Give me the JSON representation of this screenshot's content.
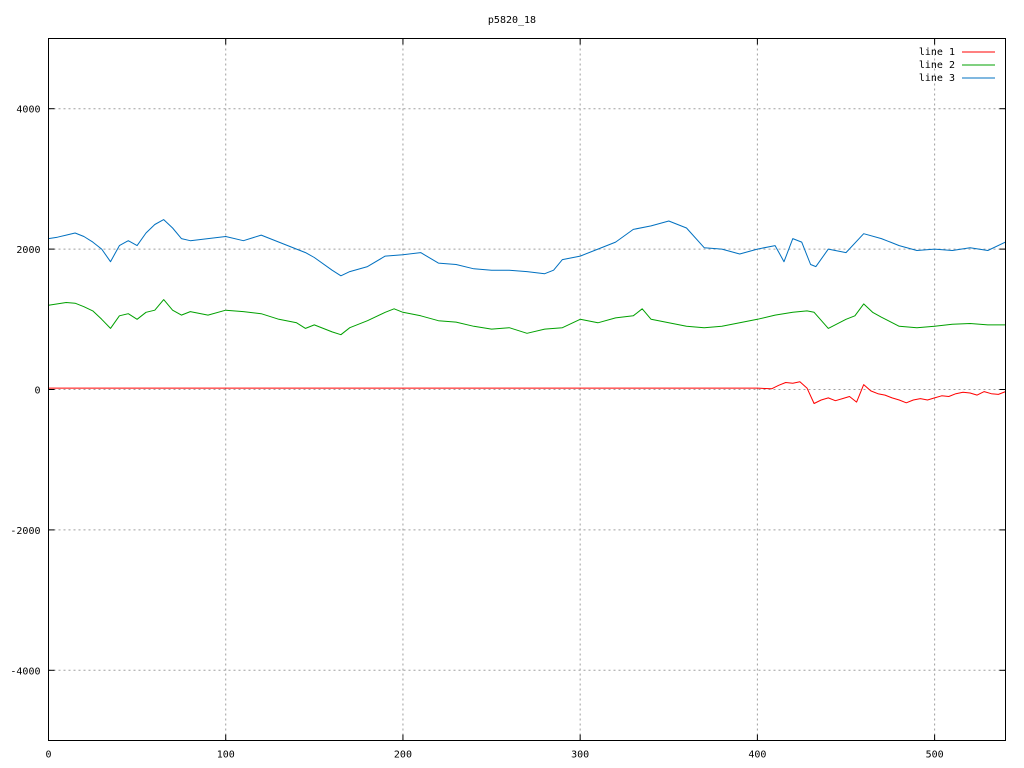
{
  "chart_data": {
    "type": "line",
    "title": "p5820_18",
    "xlabel": "",
    "ylabel": "",
    "xlim": [
      0,
      540
    ],
    "ylim": [
      -5000,
      5000
    ],
    "xticks": [
      0,
      100,
      200,
      300,
      400,
      500
    ],
    "yticks": [
      -4000,
      -2000,
      0,
      2000,
      4000
    ],
    "ytick_labels": [
      "-4000",
      "-2000",
      "0",
      "2000",
      "4000"
    ],
    "grid": true,
    "legend_position": "top-right",
    "series": [
      {
        "name": "line 1",
        "color": "#ff0000",
        "x": [
          0,
          50,
          100,
          150,
          200,
          250,
          300,
          350,
          400,
          408,
          412,
          416,
          420,
          424,
          428,
          432,
          436,
          440,
          444,
          448,
          452,
          456,
          460,
          464,
          468,
          472,
          476,
          480,
          484,
          488,
          492,
          496,
          500,
          504,
          508,
          512,
          516,
          520,
          524,
          528,
          532,
          536,
          540
        ],
        "y": [
          20,
          20,
          20,
          20,
          20,
          20,
          20,
          20,
          20,
          10,
          60,
          100,
          90,
          110,
          20,
          -200,
          -150,
          -120,
          -160,
          -130,
          -100,
          -180,
          70,
          -20,
          -60,
          -80,
          -120,
          -150,
          -190,
          -150,
          -130,
          -150,
          -120,
          -90,
          -100,
          -60,
          -40,
          -50,
          -80,
          -30,
          -60,
          -70,
          -30
        ]
      },
      {
        "name": "line 2",
        "color": "#00a000",
        "x": [
          0,
          5,
          10,
          15,
          20,
          25,
          30,
          35,
          40,
          45,
          50,
          55,
          60,
          65,
          70,
          75,
          80,
          90,
          100,
          110,
          120,
          130,
          140,
          145,
          150,
          160,
          165,
          170,
          180,
          190,
          195,
          200,
          210,
          220,
          230,
          240,
          250,
          260,
          270,
          280,
          290,
          300,
          310,
          320,
          330,
          335,
          340,
          350,
          360,
          370,
          380,
          390,
          400,
          410,
          420,
          428,
          432,
          440,
          450,
          455,
          460,
          465,
          470,
          480,
          490,
          500,
          510,
          520,
          530,
          540
        ],
        "y": [
          1200,
          1220,
          1240,
          1230,
          1180,
          1120,
          1000,
          870,
          1050,
          1080,
          1000,
          1100,
          1130,
          1280,
          1130,
          1060,
          1110,
          1060,
          1130,
          1110,
          1080,
          1000,
          950,
          870,
          920,
          820,
          780,
          880,
          980,
          1100,
          1150,
          1100,
          1050,
          980,
          960,
          900,
          860,
          880,
          800,
          860,
          880,
          1000,
          950,
          1020,
          1050,
          1150,
          1000,
          950,
          900,
          880,
          900,
          950,
          1000,
          1060,
          1100,
          1120,
          1100,
          870,
          1000,
          1050,
          1220,
          1100,
          1030,
          900,
          880,
          900,
          930,
          940,
          920,
          920
        ]
      },
      {
        "name": "line 3",
        "color": "#0070c0",
        "x": [
          0,
          5,
          10,
          15,
          20,
          25,
          30,
          35,
          40,
          45,
          50,
          55,
          60,
          65,
          70,
          75,
          80,
          90,
          100,
          110,
          120,
          130,
          140,
          145,
          150,
          160,
          165,
          170,
          180,
          190,
          200,
          210,
          220,
          230,
          240,
          250,
          260,
          270,
          280,
          285,
          290,
          300,
          310,
          320,
          330,
          340,
          350,
          360,
          370,
          380,
          390,
          400,
          410,
          415,
          420,
          425,
          430,
          433,
          440,
          450,
          460,
          470,
          480,
          490,
          500,
          510,
          520,
          530,
          540
        ],
        "y": [
          2150,
          2170,
          2200,
          2230,
          2180,
          2100,
          2000,
          1820,
          2050,
          2120,
          2050,
          2230,
          2350,
          2420,
          2300,
          2150,
          2120,
          2150,
          2180,
          2120,
          2200,
          2100,
          2000,
          1950,
          1880,
          1700,
          1620,
          1680,
          1750,
          1900,
          1920,
          1950,
          1800,
          1780,
          1720,
          1700,
          1700,
          1680,
          1650,
          1700,
          1850,
          1900,
          2000,
          2100,
          2280,
          2330,
          2400,
          2300,
          2020,
          2000,
          1930,
          2000,
          2050,
          1820,
          2150,
          2100,
          1780,
          1750,
          2000,
          1950,
          2220,
          2150,
          2050,
          1980,
          2000,
          1980,
          2020,
          1980,
          2100
        ]
      }
    ]
  }
}
